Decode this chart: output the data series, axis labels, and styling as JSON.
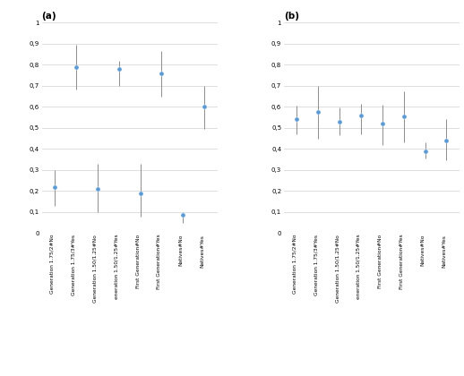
{
  "panel_a": {
    "title": "(a)",
    "categories": [
      "Generation 1.75/2·No",
      "Generation 1.75/3·Yes",
      "Generation 1.50/1.25·No",
      "eneration 1.50/1.25·Yes",
      "First Generation·No",
      "First Generation·Yes",
      "Natives·No",
      "Natives·Yes"
    ],
    "values": [
      0.22,
      0.79,
      0.21,
      0.78,
      0.19,
      0.76,
      0.085,
      0.6
    ],
    "ci_low": [
      0.13,
      0.68,
      0.1,
      0.7,
      0.08,
      0.65,
      0.048,
      0.495
    ],
    "ci_high": [
      0.3,
      0.895,
      0.33,
      0.82,
      0.33,
      0.865,
      0.098,
      0.7
    ],
    "ylim": [
      0,
      1
    ],
    "yticks": [
      0,
      0.1,
      0.2,
      0.3,
      0.4,
      0.5,
      0.6,
      0.7,
      0.8,
      0.9,
      1
    ],
    "ytick_labels": [
      "0",
      "0,1",
      "0,2",
      "0,3",
      "0,4",
      "0,5",
      "0,6",
      "0,7",
      "0,8",
      "0,9",
      "1"
    ]
  },
  "panel_b": {
    "title": "(b)",
    "categories": [
      "Generation 1.75/2·No",
      "Generation 1.75/3·Yes",
      "Generation 1.50/1.25·No",
      "eneration 1.50/1.25·Yes",
      "First Generation·No",
      "First Generation·Yes",
      "Natives·No",
      "Natives·Yes"
    ],
    "values": [
      0.54,
      0.575,
      0.53,
      0.56,
      0.52,
      0.555,
      0.39,
      0.44
    ],
    "ci_low": [
      0.47,
      0.45,
      0.465,
      0.47,
      0.42,
      0.43,
      0.355,
      0.345
    ],
    "ci_high": [
      0.605,
      0.7,
      0.595,
      0.615,
      0.61,
      0.675,
      0.43,
      0.54
    ],
    "ylim": [
      0,
      1
    ],
    "yticks": [
      0,
      0.1,
      0.2,
      0.3,
      0.4,
      0.5,
      0.6,
      0.7,
      0.8,
      0.9,
      1
    ],
    "ytick_labels": [
      "0",
      "0,1",
      "0,2",
      "0,3",
      "0,4",
      "0,5",
      "0,6",
      "0,7",
      "0,8",
      "0,9",
      "1"
    ]
  },
  "dot_color": "#5b9bd5",
  "line_color": "#8c8c8c",
  "dot_size": 14,
  "line_width": 0.7,
  "tick_fontsize": 5.0,
  "label_fontsize": 4.2,
  "title_fontsize": 7.5,
  "background_color": "#ffffff",
  "grid_color": "#d0d0d0"
}
